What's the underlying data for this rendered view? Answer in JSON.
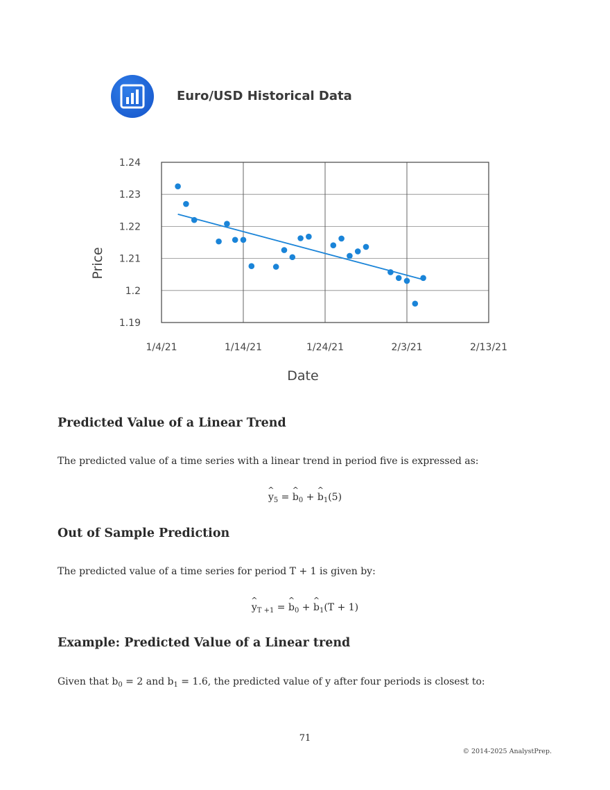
{
  "figure": {
    "logo_icon": "bar-chart-icon",
    "title": "Euro/USD Historical Data"
  },
  "chart_data": {
    "type": "scatter",
    "xlabel": "Date",
    "ylabel": "Price",
    "x_ticks": [
      "1/4/21",
      "1/14/21",
      "1/24/21",
      "2/3/21",
      "2/13/21"
    ],
    "y_ticks": [
      "1.24",
      "1.23",
      "1.22",
      "1.21",
      "1.2",
      "1.19"
    ],
    "xlim": [
      "2021-01-04",
      "2021-02-13"
    ],
    "ylim": [
      1.19,
      1.24
    ],
    "grid": true,
    "color": "#1a84d8",
    "series": [
      {
        "points": [
          {
            "x": "2021-01-06",
            "y": 1.2325
          },
          {
            "x": "2021-01-07",
            "y": 1.227
          },
          {
            "x": "2021-01-08",
            "y": 1.222
          },
          {
            "x": "2021-01-11",
            "y": 1.2153
          },
          {
            "x": "2021-01-12",
            "y": 1.2208
          },
          {
            "x": "2021-01-13",
            "y": 1.2158
          },
          {
            "x": "2021-01-14",
            "y": 1.2158
          },
          {
            "x": "2021-01-15",
            "y": 1.2076
          },
          {
            "x": "2021-01-18",
            "y": 1.2074
          },
          {
            "x": "2021-01-19",
            "y": 1.2126
          },
          {
            "x": "2021-01-20",
            "y": 1.2104
          },
          {
            "x": "2021-01-21",
            "y": 1.2163
          },
          {
            "x": "2021-01-22",
            "y": 1.2168
          },
          {
            "x": "2021-01-25",
            "y": 1.2141
          },
          {
            "x": "2021-01-26",
            "y": 1.2162
          },
          {
            "x": "2021-01-27",
            "y": 1.2108
          },
          {
            "x": "2021-01-28",
            "y": 1.2122
          },
          {
            "x": "2021-01-29",
            "y": 1.2136
          },
          {
            "x": "2021-02-01",
            "y": 1.2057
          },
          {
            "x": "2021-02-02",
            "y": 1.2039
          },
          {
            "x": "2021-02-03",
            "y": 1.203
          },
          {
            "x": "2021-02-04",
            "y": 1.1959
          },
          {
            "x": "2021-02-05",
            "y": 1.2039
          }
        ]
      }
    ],
    "trendline": {
      "x": [
        "2021-01-06",
        "2021-02-05"
      ],
      "y": [
        1.2238,
        1.2034
      ]
    }
  },
  "sections": {
    "s1_heading": "Predicted Value of a Linear Trend",
    "s1_text": "The predicted value of a time series with a linear trend in period five is expressed as:",
    "eq1": {
      "y": "y",
      "y_sub": "5",
      "eq": " = ",
      "b0": "b",
      "b0_sub": "0",
      "plus": " + ",
      "b1": "b",
      "b1_sub": "1",
      "arg": "(5)"
    },
    "s2_heading": "Out of Sample Prediction",
    "s2_text": "The predicted value of a time series for period T + 1 is given by:",
    "eq2": {
      "y": "y",
      "y_sub": "T +1",
      "eq": " = ",
      "b0": "b",
      "b0_sub": "0",
      "plus": " + ",
      "b1": "b",
      "b1_sub": "1",
      "arg": "(T + 1)"
    },
    "s3_heading": "Example: Predicted Value of a Linear trend",
    "s3_text_a": "Given that b",
    "s3_sub0": "0",
    "s3_text_b": " = 2 and b",
    "s3_sub1": "1",
    "s3_text_c": " = 1.6, the predicted value of y after four periods is closest to:"
  },
  "footer": {
    "page_number": "71",
    "copyright": "© 2014-2025 AnalystPrep."
  }
}
